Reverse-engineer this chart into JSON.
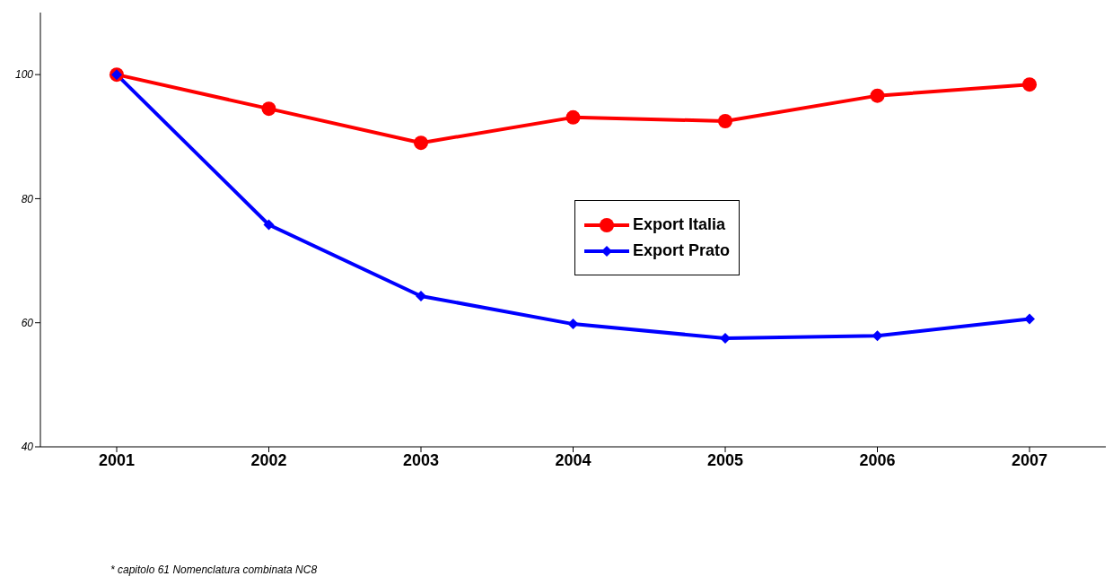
{
  "chart_data": {
    "type": "line",
    "categories": [
      "2001",
      "2002",
      "2003",
      "2004",
      "2005",
      "2006",
      "2007"
    ],
    "series": [
      {
        "name": "Export Italia",
        "color": "#ff0000",
        "marker": "circle",
        "values": [
          100,
          94.5,
          89,
          93.1,
          92.5,
          96.6,
          98.4
        ]
      },
      {
        "name": "Export Prato",
        "color": "#0000ff",
        "marker": "diamond",
        "values": [
          100,
          75.8,
          64.3,
          59.8,
          57.5,
          57.9,
          60.6
        ]
      }
    ],
    "ylim": [
      40,
      110
    ],
    "yticks": [
      40,
      60,
      80,
      100
    ],
    "grid": false,
    "legend": "center",
    "line_style": "solid",
    "annotations": [
      "* capitolo 61 Nomenclatura combinata NC8"
    ]
  }
}
